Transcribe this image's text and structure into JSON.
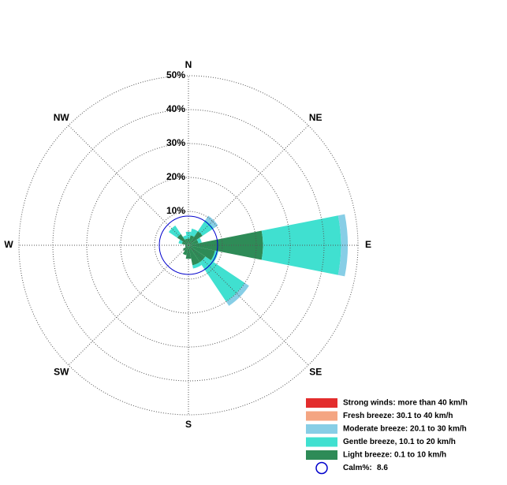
{
  "chart_data": {
    "type": "windrose",
    "categories": [
      "N",
      null,
      "NE",
      null,
      "E",
      null,
      "SE",
      null,
      "S",
      null,
      "SW",
      null,
      "W",
      null,
      "NW",
      null
    ],
    "series": [
      {
        "name": "Light breeze: 0.1 to 10 km/h",
        "color": "#2e8b57",
        "values": [
          2,
          3,
          5,
          3,
          22,
          8,
          6,
          6,
          4,
          3,
          2,
          1,
          1,
          2,
          4,
          2
        ]
      },
      {
        "name": "Gentle breeze, 10.1 to 20 km/h",
        "color": "#40e0d0",
        "values": [
          2,
          2,
          4,
          1,
          23,
          1,
          14,
          1,
          0,
          0,
          0,
          0,
          0,
          1,
          3,
          1
        ]
      },
      {
        "name": "Moderate breeze: 20.1 to 30 km/h",
        "color": "#87cee6",
        "values": [
          0,
          0,
          1.5,
          0,
          2,
          0,
          1.5,
          0,
          0,
          0,
          0,
          0,
          0,
          0,
          0,
          0
        ]
      },
      {
        "name": "Fresh breeze: 30.1 to 40 km/h",
        "color": "#f4a582",
        "values": [
          0,
          0,
          0,
          0,
          0,
          0,
          0,
          0,
          0,
          0,
          0,
          0,
          0,
          0,
          0,
          0
        ]
      },
      {
        "name": "Strong winds: more than 40 km/h",
        "color": "#e32d2d",
        "values": [
          0,
          0,
          0,
          0,
          0,
          0,
          0,
          0,
          0,
          0,
          0,
          0,
          0,
          0,
          0,
          0
        ]
      }
    ],
    "rlim": [
      0,
      50
    ],
    "rticks": [
      {
        "value": 10,
        "label": "10%"
      },
      {
        "value": 20,
        "label": "20%"
      },
      {
        "value": 30,
        "label": "30%"
      },
      {
        "value": 40,
        "label": "40%"
      },
      {
        "value": 50,
        "label": "50%"
      }
    ],
    "calm": {
      "label": "Calm%:",
      "value": 8.6,
      "color": "#0000cc"
    },
    "grid": true
  }
}
